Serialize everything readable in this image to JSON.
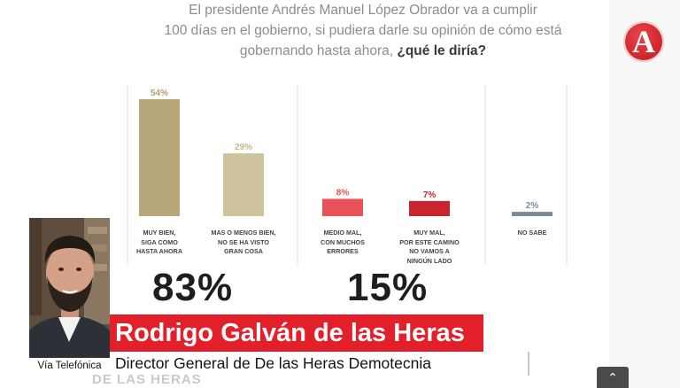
{
  "title": {
    "line1": "El presidente Andrés Manuel López Obrador va a cumplir",
    "line2": "100 días en el gobierno, si pudiera darle su opinión de cómo está",
    "line3_plain": "gobernando hasta ahora, ",
    "line3_emphasis": "¿qué le diría?"
  },
  "logo": {
    "letter": "A"
  },
  "chart_data": {
    "type": "bar",
    "categories": [
      "MUY BIEN, SIGA COMO HASTA AHORA",
      "MAS O MENOS BIEN, NO SE HA VISTO GRAN COSA",
      "MEDIO MAL, CON MUCHOS ERRORES",
      "MUY MAL, POR ESTE CAMINO NO VAMOS A NINGÚN LADO",
      "NO SABE"
    ],
    "category_lines": [
      [
        "MUY BIEN,",
        "SIGA COMO",
        "HASTA AHORA"
      ],
      [
        "MAS O MENOS BIEN,",
        "NO SE HA VISTO",
        "GRAN COSA"
      ],
      [
        "MEDIO MAL,",
        "CON MUCHOS",
        "ERRORES"
      ],
      [
        "MUY MAL,",
        "POR ESTE CAMINO",
        "NO VAMOS A",
        "NINGÚN LADO"
      ],
      [
        "NO SABE"
      ]
    ],
    "values": [
      54,
      29,
      8,
      7,
      2
    ],
    "value_labels": [
      "54%",
      "29%",
      "8%",
      "7%",
      "2%"
    ],
    "colors": [
      "#b8a77a",
      "#cfc39d",
      "#e8525b",
      "#c8252f",
      "#7b8a95"
    ],
    "label_colors": [
      "#b0a070",
      "#c4b78e",
      "#e8525b",
      "#c8252f",
      "#7b8a95"
    ],
    "group_totals": [
      {
        "label": "83%",
        "covers": [
          0,
          1
        ]
      },
      {
        "label": "15%",
        "covers": [
          2,
          3
        ]
      }
    ],
    "ylim": [
      0,
      54
    ],
    "grid": false,
    "xlabel": "",
    "ylabel": ""
  },
  "overlay": {
    "name": "Rodrigo Galván de las Heras",
    "role": "Director General de De las Heras Demotecnia",
    "source": "Vía Telefónica",
    "watermark": "DE LAS HERAS"
  },
  "controls": {
    "scroll_up_icon": "chevron-up-icon",
    "scroll_up_glyph": "⌃"
  }
}
